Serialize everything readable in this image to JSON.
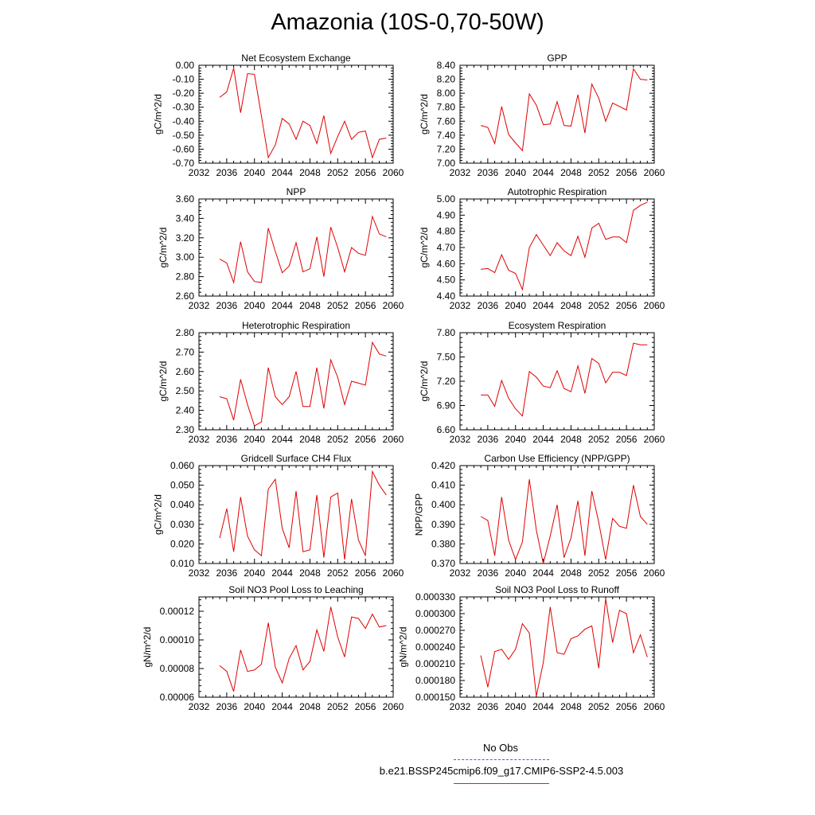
{
  "title": "Amazonia (10S-0,70-50W)",
  "colors": {
    "model": "#e00000",
    "obs": "#4a5fd8",
    "axis": "#000000"
  },
  "legend": {
    "obs_label": "No Obs",
    "model_label": "b.e21.BSSP245cmip6.f09_g17.CMIP6-SSP2-4.5.003"
  },
  "chart_data": [
    {
      "type": "line",
      "title": "Net Ecosystem Exchange",
      "ylabel": "gC/m^2/d",
      "xlim": [
        2032,
        2060
      ],
      "xticks": [
        "2032",
        "2036",
        "2040",
        "2044",
        "2048",
        "2052",
        "2056",
        "2060"
      ],
      "ylim": [
        -0.7,
        0.0
      ],
      "yticks": [
        "-0.70",
        "-0.60",
        "-0.50",
        "-0.40",
        "-0.30",
        "-0.20",
        "-0.10",
        "0.00"
      ],
      "x": [
        2035,
        2036,
        2037,
        2038,
        2039,
        2040,
        2041,
        2042,
        2043,
        2044,
        2045,
        2046,
        2047,
        2048,
        2049,
        2050,
        2051,
        2052,
        2053,
        2054,
        2055,
        2056,
        2057,
        2058,
        2059
      ],
      "values": [
        -0.23,
        -0.19,
        -0.02,
        -0.34,
        -0.06,
        -0.065,
        -0.36,
        -0.66,
        -0.57,
        -0.38,
        -0.42,
        -0.53,
        -0.4,
        -0.43,
        -0.56,
        -0.36,
        -0.63,
        -0.51,
        -0.4,
        -0.53,
        -0.48,
        -0.47,
        -0.66,
        -0.53,
        -0.52
      ]
    },
    {
      "type": "line",
      "title": "GPP",
      "ylabel": "gC/m^2/d",
      "xlim": [
        2032,
        2060
      ],
      "xticks": [
        "2032",
        "2036",
        "2040",
        "2044",
        "2048",
        "2052",
        "2056",
        "2060"
      ],
      "ylim": [
        7.0,
        8.4
      ],
      "yticks": [
        "7.00",
        "7.20",
        "7.40",
        "7.60",
        "7.80",
        "8.00",
        "8.20",
        "8.40"
      ],
      "x": [
        2035,
        2036,
        2037,
        2038,
        2039,
        2040,
        2041,
        2042,
        2043,
        2044,
        2045,
        2046,
        2047,
        2048,
        2049,
        2050,
        2051,
        2052,
        2053,
        2054,
        2055,
        2056,
        2057,
        2058,
        2059
      ],
      "values": [
        7.54,
        7.51,
        7.28,
        7.81,
        7.41,
        7.29,
        7.18,
        7.99,
        7.83,
        7.55,
        7.56,
        7.88,
        7.54,
        7.53,
        7.98,
        7.43,
        8.13,
        7.93,
        7.6,
        7.86,
        7.81,
        7.76,
        8.35,
        8.2,
        8.19
      ]
    },
    {
      "type": "line",
      "title": "NPP",
      "ylabel": "gC/m^2/d",
      "xlim": [
        2032,
        2060
      ],
      "xticks": [
        "2032",
        "2036",
        "2040",
        "2044",
        "2048",
        "2052",
        "2056",
        "2060"
      ],
      "ylim": [
        2.6,
        3.6
      ],
      "yticks": [
        "2.60",
        "2.80",
        "3.00",
        "3.20",
        "3.40",
        "3.60"
      ],
      "x": [
        2035,
        2036,
        2037,
        2038,
        2039,
        2040,
        2041,
        2042,
        2043,
        2044,
        2045,
        2046,
        2047,
        2048,
        2049,
        2050,
        2051,
        2052,
        2053,
        2054,
        2055,
        2056,
        2057,
        2058,
        2059
      ],
      "values": [
        2.98,
        2.94,
        2.74,
        3.16,
        2.85,
        2.75,
        2.74,
        3.3,
        3.06,
        2.84,
        2.91,
        3.15,
        2.85,
        2.88,
        3.21,
        2.8,
        3.31,
        3.1,
        2.85,
        3.1,
        3.04,
        3.02,
        3.42,
        3.24,
        3.21
      ]
    },
    {
      "type": "line",
      "title": "Autotrophic Respiration",
      "ylabel": "gC/m^2/d",
      "xlim": [
        2032,
        2060
      ],
      "xticks": [
        "2032",
        "2036",
        "2040",
        "2044",
        "2048",
        "2052",
        "2056",
        "2060"
      ],
      "ylim": [
        4.4,
        5.0
      ],
      "yticks": [
        "4.40",
        "4.50",
        "4.60",
        "4.70",
        "4.80",
        "4.90",
        "5.00"
      ],
      "x": [
        2035,
        2036,
        2037,
        2038,
        2039,
        2040,
        2041,
        2042,
        2043,
        2044,
        2045,
        2046,
        2047,
        2048,
        2049,
        2050,
        2051,
        2052,
        2053,
        2054,
        2055,
        2056,
        2057,
        2058,
        2059
      ],
      "values": [
        4.565,
        4.57,
        4.545,
        4.655,
        4.56,
        4.54,
        4.44,
        4.7,
        4.78,
        4.715,
        4.65,
        4.73,
        4.68,
        4.65,
        4.77,
        4.64,
        4.82,
        4.85,
        4.75,
        4.765,
        4.765,
        4.73,
        4.93,
        4.96,
        4.98
      ]
    },
    {
      "type": "line",
      "title": "Heterotrophic Respiration",
      "ylabel": "gC/m^2/d",
      "xlim": [
        2032,
        2060
      ],
      "xticks": [
        "2032",
        "2036",
        "2040",
        "2044",
        "2048",
        "2052",
        "2056",
        "2060"
      ],
      "ylim": [
        2.3,
        2.8
      ],
      "yticks": [
        "2.30",
        "2.40",
        "2.50",
        "2.60",
        "2.70",
        "2.80"
      ],
      "x": [
        2035,
        2036,
        2037,
        2038,
        2039,
        2040,
        2041,
        2042,
        2043,
        2044,
        2045,
        2046,
        2047,
        2048,
        2049,
        2050,
        2051,
        2052,
        2053,
        2054,
        2055,
        2056,
        2057,
        2058,
        2059
      ],
      "values": [
        2.47,
        2.46,
        2.35,
        2.56,
        2.43,
        2.32,
        2.34,
        2.62,
        2.47,
        2.43,
        2.47,
        2.6,
        2.42,
        2.42,
        2.62,
        2.41,
        2.66,
        2.57,
        2.43,
        2.55,
        2.54,
        2.53,
        2.75,
        2.69,
        2.68
      ]
    },
    {
      "type": "line",
      "title": "Ecosystem Respiration",
      "ylabel": "gC/m^2/d",
      "xlim": [
        2032,
        2060
      ],
      "xticks": [
        "2032",
        "2036",
        "2040",
        "2044",
        "2048",
        "2052",
        "2056",
        "2060"
      ],
      "ylim": [
        6.6,
        7.8
      ],
      "yticks": [
        "6.60",
        "6.90",
        "7.20",
        "7.50",
        "7.80"
      ],
      "x": [
        2035,
        2036,
        2037,
        2038,
        2039,
        2040,
        2041,
        2042,
        2043,
        2044,
        2045,
        2046,
        2047,
        2048,
        2049,
        2050,
        2051,
        2052,
        2053,
        2054,
        2055,
        2056,
        2057,
        2058,
        2059
      ],
      "values": [
        7.03,
        7.03,
        6.89,
        7.21,
        6.99,
        6.86,
        6.77,
        7.32,
        7.25,
        7.14,
        7.12,
        7.33,
        7.11,
        7.07,
        7.39,
        7.05,
        7.48,
        7.42,
        7.18,
        7.31,
        7.31,
        7.27,
        7.67,
        7.65,
        7.65
      ]
    },
    {
      "type": "line",
      "title": "Gridcell Surface CH4 Flux",
      "ylabel": "gC/m^2/d",
      "xlim": [
        2032,
        2060
      ],
      "xticks": [
        "2032",
        "2036",
        "2040",
        "2044",
        "2048",
        "2052",
        "2056",
        "2060"
      ],
      "ylim": [
        0.01,
        0.06
      ],
      "yticks": [
        "0.010",
        "0.020",
        "0.030",
        "0.040",
        "0.050",
        "0.060"
      ],
      "x": [
        2035,
        2036,
        2037,
        2038,
        2039,
        2040,
        2041,
        2042,
        2043,
        2044,
        2045,
        2046,
        2047,
        2048,
        2049,
        2050,
        2051,
        2052,
        2053,
        2054,
        2055,
        2056,
        2057,
        2058,
        2059
      ],
      "values": [
        0.023,
        0.038,
        0.016,
        0.044,
        0.024,
        0.017,
        0.014,
        0.048,
        0.053,
        0.028,
        0.018,
        0.047,
        0.016,
        0.017,
        0.045,
        0.013,
        0.044,
        0.046,
        0.012,
        0.043,
        0.022,
        0.014,
        0.057,
        0.05,
        0.045
      ]
    },
    {
      "type": "line",
      "title": "Carbon Use Efficiency (NPP/GPP)",
      "ylabel": "NPP/GPP",
      "xlim": [
        2032,
        2060
      ],
      "xticks": [
        "2032",
        "2036",
        "2040",
        "2044",
        "2048",
        "2052",
        "2056",
        "2060"
      ],
      "ylim": [
        0.37,
        0.42
      ],
      "yticks": [
        "0.370",
        "0.380",
        "0.390",
        "0.400",
        "0.410",
        "0.420"
      ],
      "x": [
        2035,
        2036,
        2037,
        2038,
        2039,
        2040,
        2041,
        2042,
        2043,
        2044,
        2045,
        2046,
        2047,
        2048,
        2049,
        2050,
        2051,
        2052,
        2053,
        2054,
        2055,
        2056,
        2057,
        2058,
        2059
      ],
      "values": [
        0.394,
        0.392,
        0.374,
        0.404,
        0.382,
        0.372,
        0.381,
        0.413,
        0.387,
        0.37,
        0.384,
        0.4,
        0.373,
        0.383,
        0.402,
        0.374,
        0.407,
        0.391,
        0.372,
        0.393,
        0.389,
        0.388,
        0.41,
        0.394,
        0.39
      ]
    },
    {
      "type": "line",
      "title": "Soil NO3 Pool Loss to Leaching",
      "ylabel": "gN/m^2/d",
      "xlim": [
        2032,
        2060
      ],
      "xticks": [
        "2032",
        "2036",
        "2040",
        "2044",
        "2048",
        "2052",
        "2056",
        "2060"
      ],
      "ylim": [
        6e-05,
        0.00013
      ],
      "yticks": [
        "0.00006",
        "0.00008",
        "0.00010",
        "0.00012"
      ],
      "ytick_values": [
        6e-05,
        8e-05,
        0.0001,
        0.00012
      ],
      "x": [
        2035,
        2036,
        2037,
        2038,
        2039,
        2040,
        2041,
        2042,
        2043,
        2044,
        2045,
        2046,
        2047,
        2048,
        2049,
        2050,
        2051,
        2052,
        2053,
        2054,
        2055,
        2056,
        2057,
        2058,
        2059
      ],
      "values": [
        8.2e-05,
        7.8e-05,
        6.4e-05,
        9.3e-05,
        7.8e-05,
        7.9e-05,
        8.3e-05,
        0.000112,
        8.1e-05,
        7e-05,
        8.7e-05,
        9.6e-05,
        7.9e-05,
        8.5e-05,
        0.000107,
        9.2e-05,
        0.000123,
        0.000102,
        8.8e-05,
        0.000116,
        0.000115,
        0.000108,
        0.000118,
        0.000109,
        0.00011
      ]
    },
    {
      "type": "line",
      "title": "Soil NO3 Pool Loss to Runoff",
      "ylabel": "gN/m^2/d",
      "xlim": [
        2032,
        2060
      ],
      "xticks": [
        "2032",
        "2036",
        "2040",
        "2044",
        "2048",
        "2052",
        "2056",
        "2060"
      ],
      "ylim": [
        0.00015,
        0.00033
      ],
      "yticks": [
        "0.000150",
        "0.000180",
        "0.000210",
        "0.000240",
        "0.000270",
        "0.000300",
        "0.000330"
      ],
      "x": [
        2035,
        2036,
        2037,
        2038,
        2039,
        2040,
        2041,
        2042,
        2043,
        2044,
        2045,
        2046,
        2047,
        2048,
        2049,
        2050,
        2051,
        2052,
        2053,
        2054,
        2055,
        2056,
        2057,
        2058,
        2059
      ],
      "values": [
        0.000225,
        0.000168,
        0.000232,
        0.000236,
        0.000218,
        0.000236,
        0.000282,
        0.000265,
        0.000152,
        0.000212,
        0.000312,
        0.00023,
        0.000227,
        0.000255,
        0.00026,
        0.000272,
        0.000278,
        0.000202,
        0.000327,
        0.000248,
        0.000306,
        0.0003,
        0.00023,
        0.000262,
        0.000222
      ]
    }
  ]
}
